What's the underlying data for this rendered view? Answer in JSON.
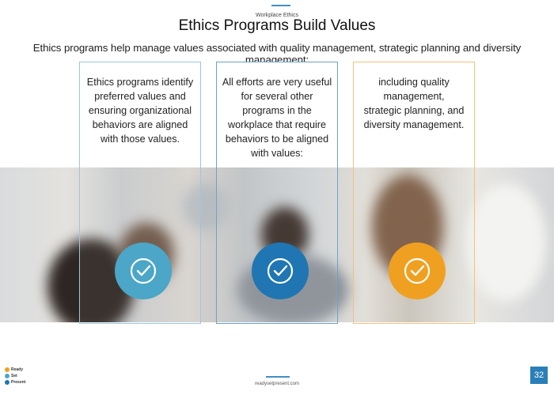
{
  "header": {
    "eyebrow": "Workplace Ethics",
    "title": "Ethics Programs Build Values",
    "subtitle": "Ethics programs help manage values associated with quality management, strategic planning and diversity management:"
  },
  "cards": [
    {
      "text": "Ethics programs identify preferred values and ensuring organizational behaviors are aligned with those values.",
      "icon": "checkmark-icon",
      "color": "#4ba6c8",
      "border": "#9cc7de"
    },
    {
      "text": "All efforts are very useful for several other programs in the workplace that require behaviors to be aligned with values:",
      "icon": "checkmark-icon",
      "color": "#1f76b2",
      "border": "#6aa3c8"
    },
    {
      "text": "including quality management, strategic planning, and diversity management.",
      "icon": "checkmark-icon",
      "color": "#f0a020",
      "border": "#f2c27a"
    }
  ],
  "footer": {
    "logo_line1": "Ready",
    "logo_line2": "Set",
    "logo_line3": "Present",
    "url": "readysetpresent.com",
    "page_number": "32"
  },
  "colors": {
    "accent": "#3f8fc4",
    "page_badge": "#2a7fb8"
  }
}
